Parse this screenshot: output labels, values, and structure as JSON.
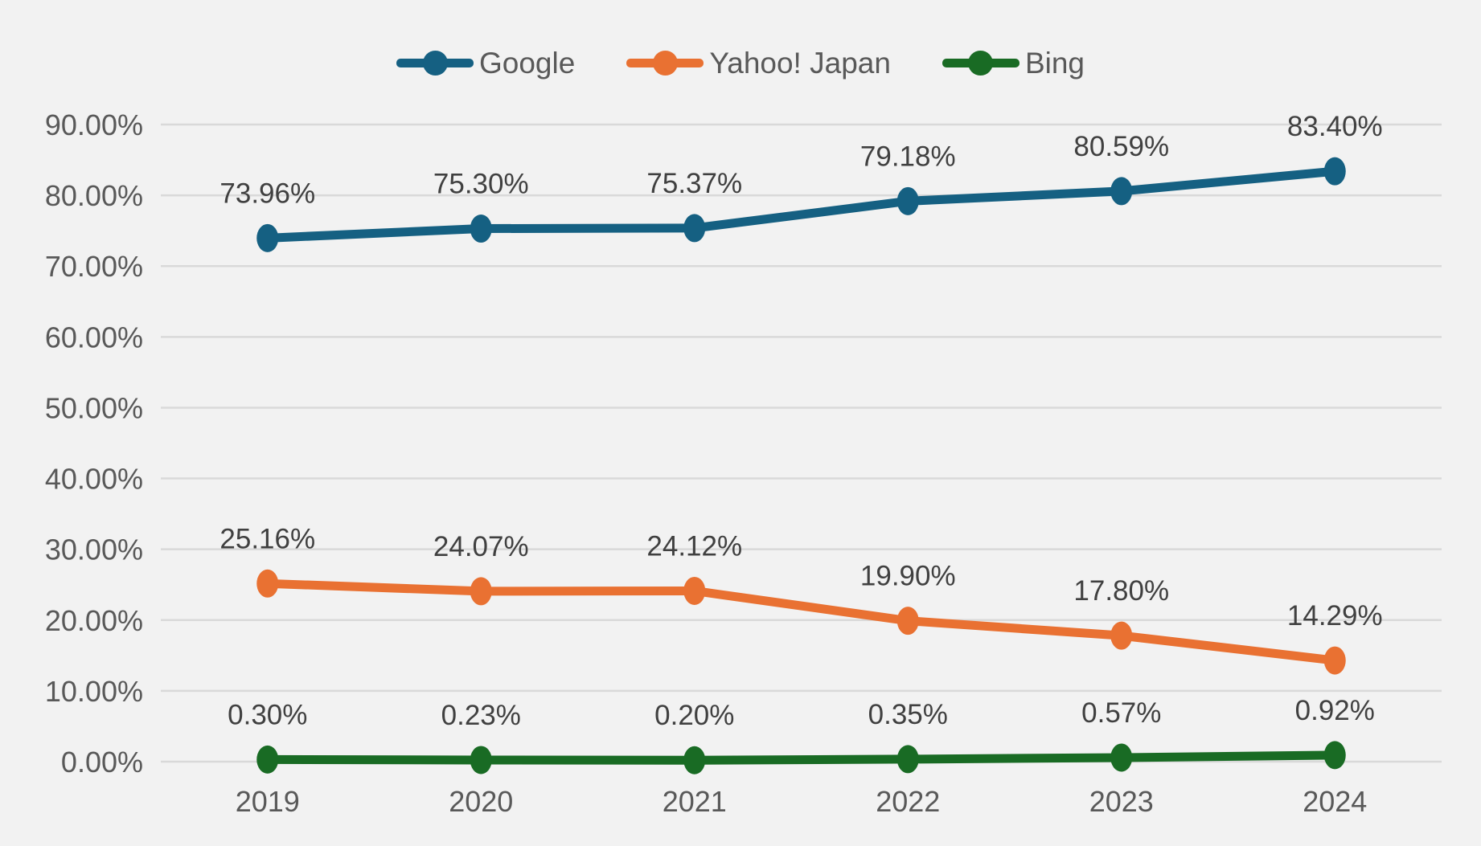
{
  "chart_data": {
    "type": "line",
    "title": "",
    "categories": [
      "2019",
      "2020",
      "2021",
      "2022",
      "2023",
      "2024"
    ],
    "series": [
      {
        "name": "Google",
        "color": "#156082",
        "values": [
          73.96,
          75.3,
          75.37,
          79.18,
          80.59,
          83.4
        ],
        "labels": [
          "73.96%",
          "75.30%",
          "75.37%",
          "79.18%",
          "80.59%",
          "83.40%"
        ]
      },
      {
        "name": "Yahoo! Japan",
        "color": "#E97132",
        "values": [
          25.16,
          24.07,
          24.12,
          19.9,
          17.8,
          14.29
        ],
        "labels": [
          "25.16%",
          "24.07%",
          "24.12%",
          "19.90%",
          "17.80%",
          "14.29%"
        ]
      },
      {
        "name": "Bing",
        "color": "#196B24",
        "values": [
          0.3,
          0.23,
          0.2,
          0.35,
          0.57,
          0.92
        ],
        "labels": [
          "0.30%",
          "0.23%",
          "0.20%",
          "0.35%",
          "0.57%",
          "0.92%"
        ]
      }
    ],
    "y_axis": {
      "min": 0,
      "max": 90,
      "step": 10,
      "tick_labels": [
        "0.00%",
        "10.00%",
        "20.00%",
        "30.00%",
        "40.00%",
        "50.00%",
        "60.00%",
        "70.00%",
        "80.00%",
        "90.00%"
      ]
    },
    "legend_position": "top",
    "grid": true,
    "style": {
      "background_color": "#f2f2f2",
      "gridline_color": "#d9d9d9",
      "axis_text_color": "#595959",
      "data_label_color": "#404040"
    }
  }
}
